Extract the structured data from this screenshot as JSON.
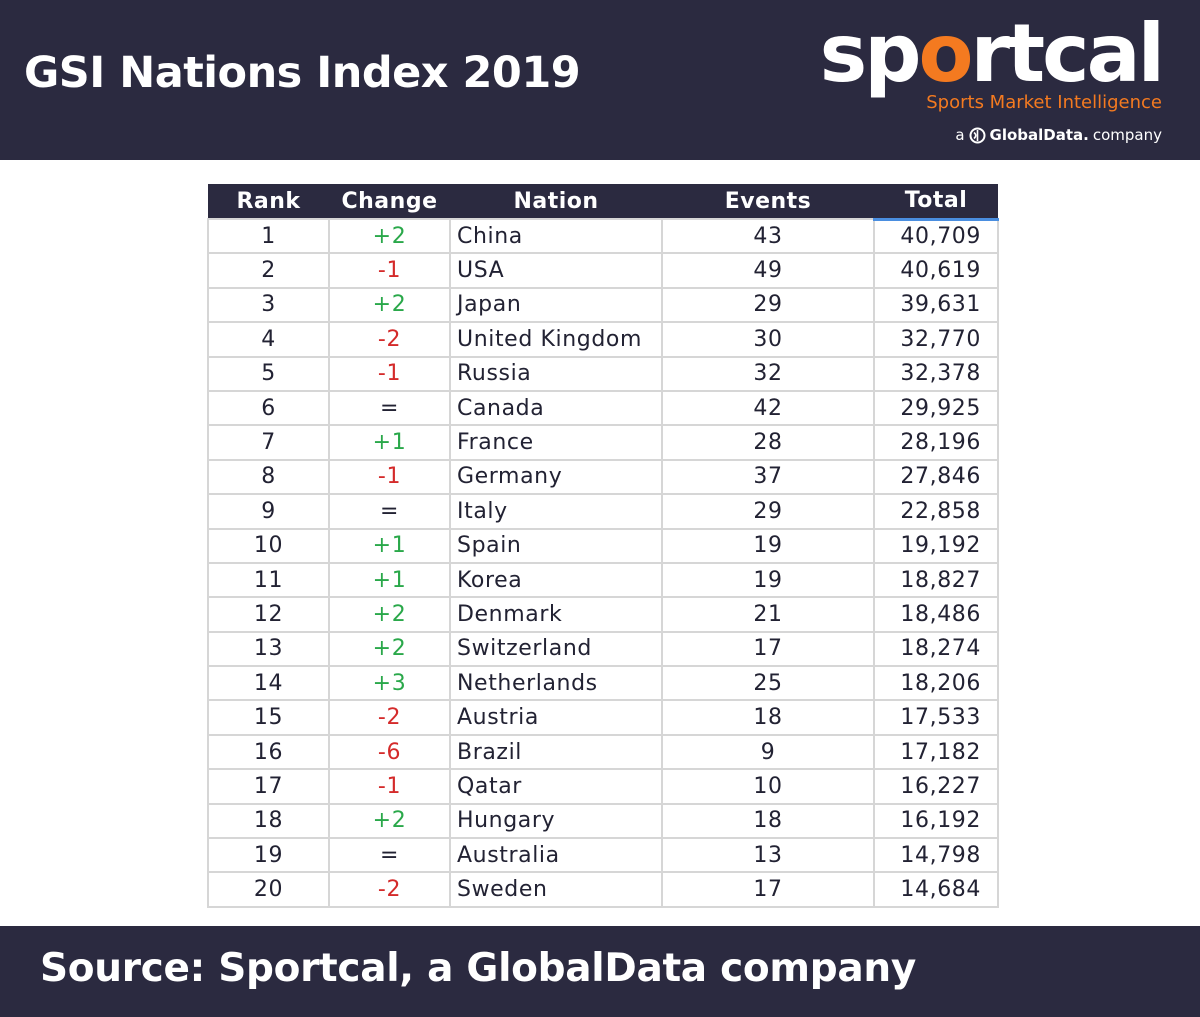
{
  "title": "GSI Nations Index 2019",
  "logo": {
    "word_before": "sp",
    "word_o": "o",
    "word_after": "rtcal",
    "tagline": "Sports Market Intelligence",
    "company_prefix": "a",
    "company_name": "GlobalData.",
    "company_suffix": "company",
    "accent_color": "#f47a20"
  },
  "colors": {
    "background_dark": "#2b2a40",
    "positive_change": "#2aa84a",
    "negative_change": "#d42a2a"
  },
  "chart_data": {
    "type": "table",
    "columns": [
      "Rank",
      "Change",
      "Nation",
      "Events",
      "Total"
    ],
    "rows": [
      {
        "rank": "1",
        "change": "+2",
        "nation": "China",
        "events": "43",
        "total": "40,709"
      },
      {
        "rank": "2",
        "change": "-1",
        "nation": "USA",
        "events": "49",
        "total": "40,619"
      },
      {
        "rank": "3",
        "change": "+2",
        "nation": "Japan",
        "events": "29",
        "total": "39,631"
      },
      {
        "rank": "4",
        "change": "-2",
        "nation": "United Kingdom",
        "events": "30",
        "total": "32,770"
      },
      {
        "rank": "5",
        "change": "-1",
        "nation": "Russia",
        "events": "32",
        "total": "32,378"
      },
      {
        "rank": "6",
        "change": "=",
        "nation": "Canada",
        "events": "42",
        "total": "29,925"
      },
      {
        "rank": "7",
        "change": "+1",
        "nation": "France",
        "events": "28",
        "total": "28,196"
      },
      {
        "rank": "8",
        "change": "-1",
        "nation": "Germany",
        "events": "37",
        "total": "27,846"
      },
      {
        "rank": "9",
        "change": "=",
        "nation": "Italy",
        "events": "29",
        "total": "22,858"
      },
      {
        "rank": "10",
        "change": "+1",
        "nation": "Spain",
        "events": "19",
        "total": "19,192"
      },
      {
        "rank": "11",
        "change": "+1",
        "nation": "Korea",
        "events": "19",
        "total": "18,827"
      },
      {
        "rank": "12",
        "change": "+2",
        "nation": "Denmark",
        "events": "21",
        "total": "18,486"
      },
      {
        "rank": "13",
        "change": "+2",
        "nation": "Switzerland",
        "events": "17",
        "total": "18,274"
      },
      {
        "rank": "14",
        "change": "+3",
        "nation": "Netherlands",
        "events": "25",
        "total": "18,206"
      },
      {
        "rank": "15",
        "change": "-2",
        "nation": "Austria",
        "events": "18",
        "total": "17,533"
      },
      {
        "rank": "16",
        "change": "-6",
        "nation": "Brazil",
        "events": "9",
        "total": "17,182"
      },
      {
        "rank": "17",
        "change": "-1",
        "nation": "Qatar",
        "events": "10",
        "total": "16,227"
      },
      {
        "rank": "18",
        "change": "+2",
        "nation": "Hungary",
        "events": "18",
        "total": "16,192"
      },
      {
        "rank": "19",
        "change": "=",
        "nation": "Australia",
        "events": "13",
        "total": "14,798"
      },
      {
        "rank": "20",
        "change": "-2",
        "nation": "Sweden",
        "events": "17",
        "total": "14,684"
      }
    ]
  },
  "source": "Source: Sportcal, a GlobalData company"
}
